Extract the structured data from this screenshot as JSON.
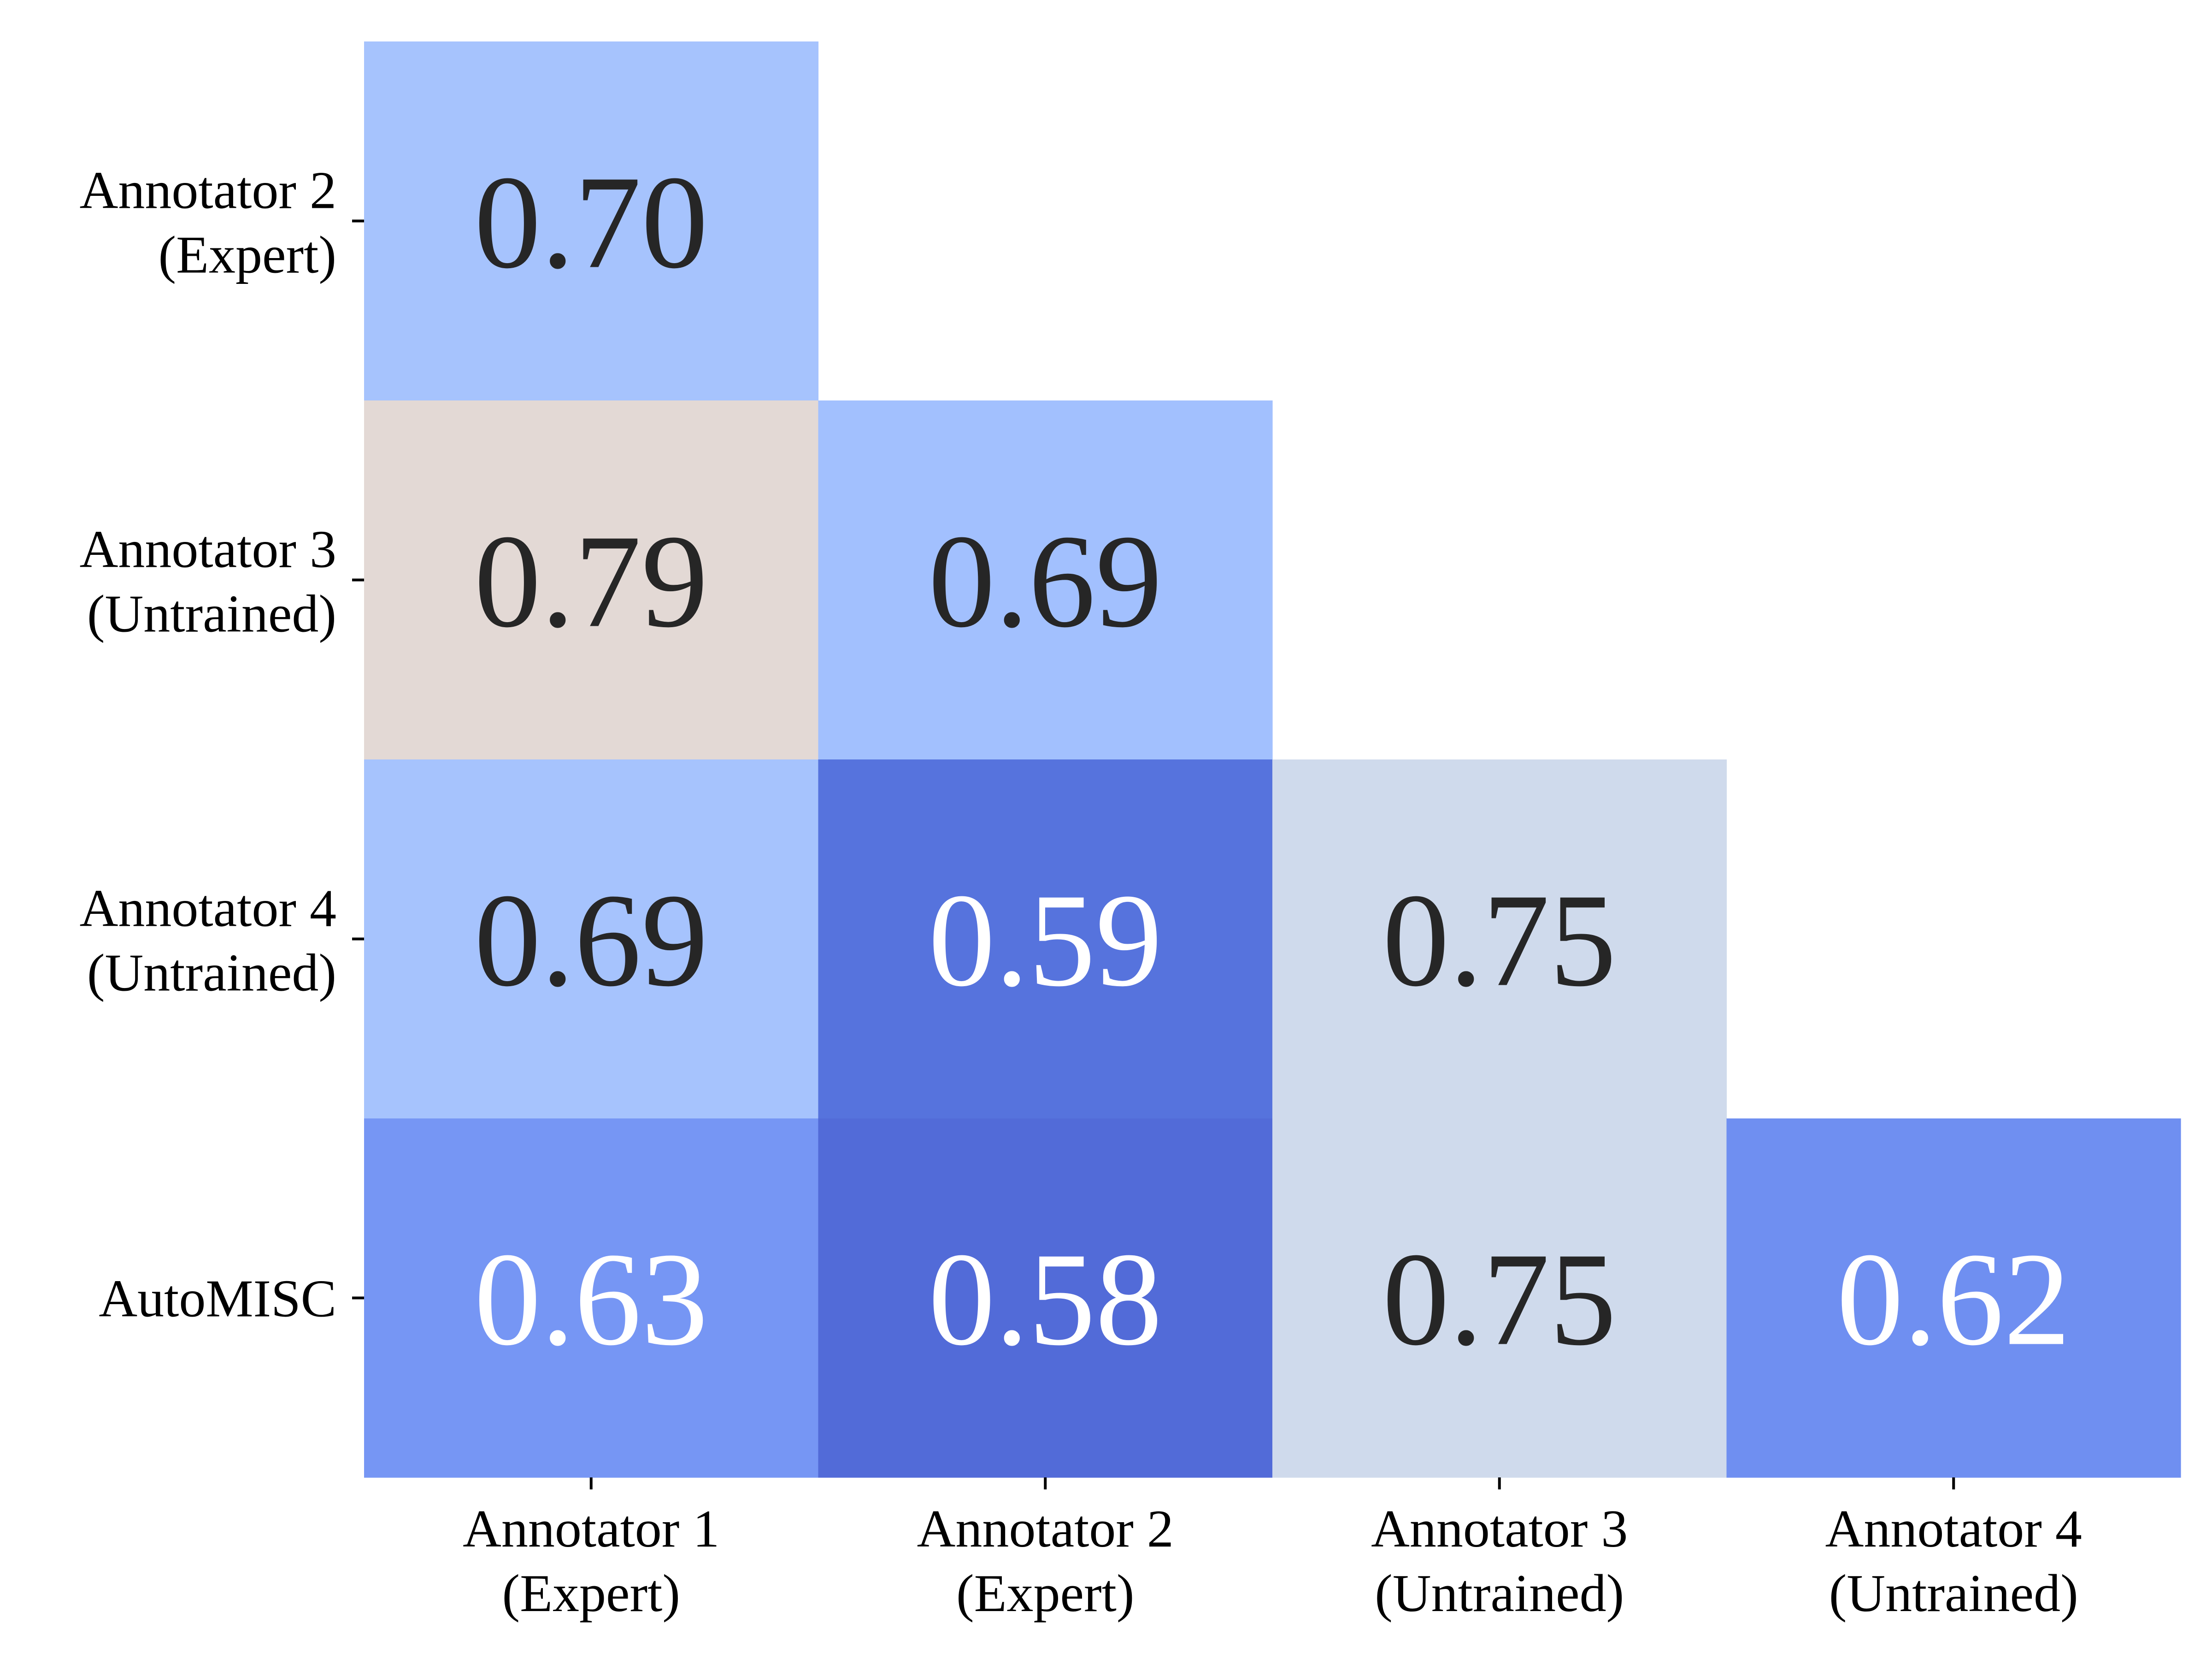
{
  "chart_data": {
    "type": "heatmap",
    "title": "",
    "xlabel": "",
    "ylabel": "",
    "x_categories": [
      [
        "Annotator 1",
        "(Expert)"
      ],
      [
        "Annotator 2",
        "(Expert)"
      ],
      [
        "Annotator 3",
        "(Untrained)"
      ],
      [
        "Annotator 4",
        "(Untrained)"
      ]
    ],
    "y_categories": [
      [
        "Annotator 2",
        "(Expert)"
      ],
      [
        "Annotator 3",
        "(Untrained)"
      ],
      [
        "Annotator 4",
        "(Untrained)"
      ],
      [
        "AutoMISC"
      ]
    ],
    "values": [
      [
        0.7,
        null,
        null,
        null
      ],
      [
        0.79,
        0.69,
        null,
        null
      ],
      [
        0.69,
        0.59,
        0.75,
        null
      ],
      [
        0.63,
        0.58,
        0.75,
        0.62
      ]
    ],
    "value_labels": [
      [
        "0.70",
        "",
        "",
        ""
      ],
      [
        "0.79",
        "0.69",
        "",
        ""
      ],
      [
        "0.69",
        "0.59",
        "0.75",
        ""
      ],
      [
        "0.63",
        "0.58",
        "0.75",
        "0.62"
      ]
    ],
    "colormap": "coolwarm",
    "mask": "upper-triangle",
    "colorbar": false,
    "grid": false,
    "cell_colors": [
      [
        "#a6c3fd",
        "",
        "",
        ""
      ],
      [
        "#e3d9d5",
        "#a2c0fe",
        "",
        ""
      ],
      [
        "#a6c3fd",
        "#5673dd",
        "#cfdaec",
        ""
      ],
      [
        "#7696f4",
        "#526bd8",
        "#cfdaec",
        "#6f8ff1"
      ]
    ],
    "text_colors": [
      [
        "#262626",
        "",
        "",
        ""
      ],
      [
        "#262626",
        "#262626",
        "",
        ""
      ],
      [
        "#262626",
        "#ffffff",
        "#262626",
        ""
      ],
      [
        "#ffffff",
        "#ffffff",
        "#262626",
        "#ffffff"
      ]
    ]
  }
}
